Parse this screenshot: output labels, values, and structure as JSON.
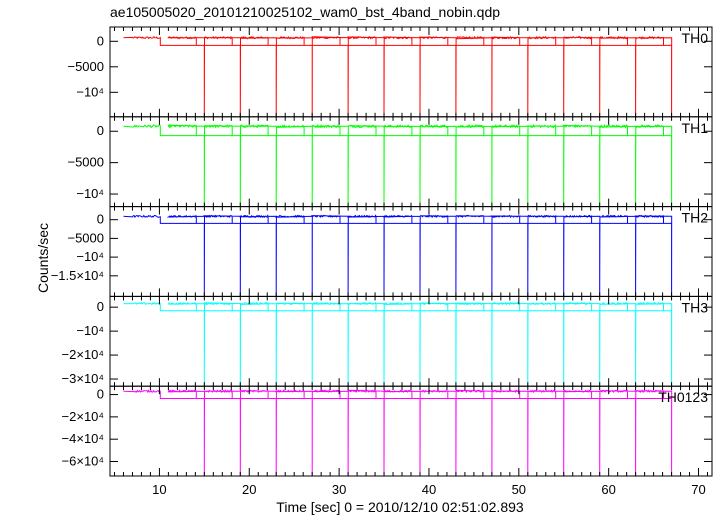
{
  "chart_data": {
    "type": "line",
    "title": "ae105005020_20101210025102_wam0_bst_4band_nobin.qdp",
    "xlabel": "Time [sec] 0 = 2010/12/10 02:51:02.893",
    "ylabel": "Counts/sec",
    "xlim": [
      4.5,
      71.5
    ],
    "x_ticks": [
      10,
      20,
      30,
      40,
      50,
      60,
      70
    ],
    "grid": false,
    "block_starts": [
      7,
      11,
      15,
      19,
      23,
      27,
      31,
      35,
      39,
      43,
      47,
      51,
      55,
      59,
      63
    ],
    "block_high_end": [
      10.1,
      14.1,
      18.1,
      22.1,
      26.1,
      30.1,
      34.1,
      38.1,
      42.1,
      46.1,
      50.1,
      54.1,
      58.1,
      62.1,
      66.1
    ],
    "spike_times": [
      15,
      19,
      23,
      27,
      31,
      35,
      39,
      43,
      47,
      51,
      55,
      59,
      63,
      67
    ],
    "x_start": 6,
    "x_end": 67,
    "panels": [
      {
        "name": "TH0",
        "color": "#ff0000",
        "high_level": 700,
        "low_level": -800,
        "spike_min": -14800,
        "ylim": [
          -14800,
          2800
        ],
        "y_ticks": [
          {
            "value": 0,
            "label": "0"
          },
          {
            "value": -5000,
            "label": "−5000"
          },
          {
            "value": -10000,
            "label": "−10⁴"
          }
        ]
      },
      {
        "name": "TH1",
        "color": "#00ff00",
        "high_level": 800,
        "low_level": -700,
        "spike_min": -12000,
        "ylim": [
          -12000,
          2300
        ],
        "y_ticks": [
          {
            "value": 0,
            "label": "0"
          },
          {
            "value": -5000,
            "label": "−5000"
          },
          {
            "value": -10000,
            "label": "−10⁴"
          }
        ]
      },
      {
        "name": "TH2",
        "color": "#0000ff",
        "high_level": 900,
        "low_level": -1000,
        "spike_min": -20500,
        "ylim": [
          -20500,
          3500
        ],
        "y_ticks": [
          {
            "value": 0,
            "label": "0"
          },
          {
            "value": -5000,
            "label": "−5000"
          },
          {
            "value": -10000,
            "label": "−10⁴"
          },
          {
            "value": -15000,
            "label": "−1.5×10⁴"
          }
        ]
      },
      {
        "name": "TH3",
        "color": "#00ffff",
        "high_level": 1500,
        "low_level": -1500,
        "spike_min": -33000,
        "ylim": [
          -33000,
          4500
        ],
        "y_ticks": [
          {
            "value": 0,
            "label": "0"
          },
          {
            "value": -10000,
            "label": "−10⁴"
          },
          {
            "value": -20000,
            "label": "−2×10⁴"
          },
          {
            "value": -30000,
            "label": "−3×10⁴"
          }
        ]
      },
      {
        "name": "TH0123",
        "color": "#ff00ff",
        "high_level": 3000,
        "low_level": -3500,
        "spike_min": -73000,
        "ylim": [
          -73000,
          7500
        ],
        "y_ticks": [
          {
            "value": 0,
            "label": "0"
          },
          {
            "value": -20000,
            "label": "−2×10⁴"
          },
          {
            "value": -40000,
            "label": "−4×10⁴"
          },
          {
            "value": -60000,
            "label": "−6×10⁴"
          }
        ]
      }
    ]
  }
}
